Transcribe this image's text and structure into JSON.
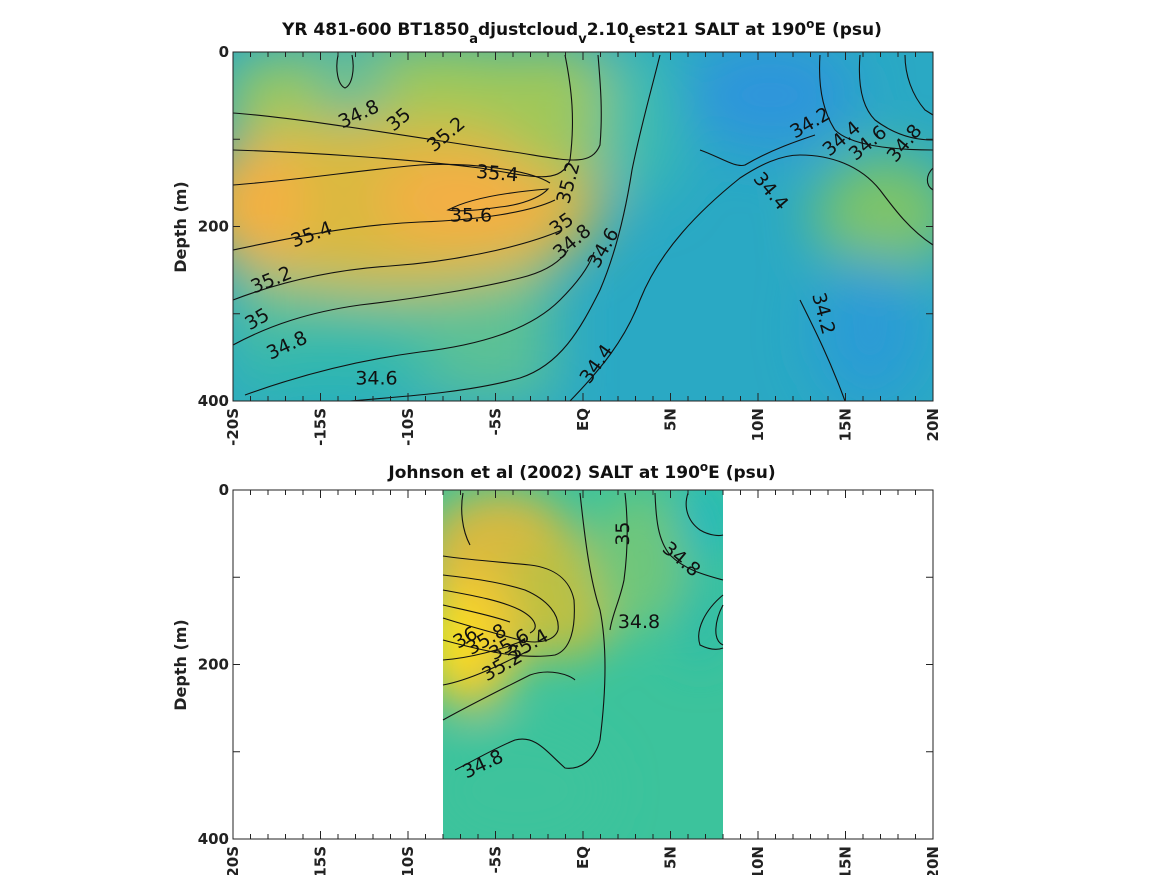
{
  "chart_data": [
    {
      "type": "heatmap",
      "title_main": "YR 481-600 BT1850",
      "title_sub1": "a",
      "title_mid1": "djustcloud",
      "title_sub2": "v",
      "title_mid2": "2.10",
      "title_sub3": "t",
      "title_mid3": "est21 SALT at 190",
      "title_sup": "o",
      "title_end": "E (psu)",
      "ylabel": "Depth (m)",
      "xlim": [
        -20,
        20
      ],
      "ylim": [
        0,
        400
      ],
      "x_ticks": [
        {
          "value": -20,
          "label": "-20S"
        },
        {
          "value": -15,
          "label": "-15S"
        },
        {
          "value": -10,
          "label": "-10S"
        },
        {
          "value": -5,
          "label": "-5S"
        },
        {
          "value": 0,
          "label": "EQ"
        },
        {
          "value": 5,
          "label": "5N"
        },
        {
          "value": 10,
          "label": "10N"
        },
        {
          "value": 15,
          "label": "15N"
        },
        {
          "value": 20,
          "label": "20N"
        }
      ],
      "y_ticks": [
        {
          "value": 0,
          "label": "0"
        },
        {
          "value": 200,
          "label": "200"
        },
        {
          "value": 400,
          "label": "400"
        }
      ],
      "data_extent": [
        -20,
        20
      ],
      "contour_labels": [
        {
          "text": "34.8",
          "x": -12.8,
          "y": 72,
          "angle": -25
        },
        {
          "text": "35",
          "x": -10.5,
          "y": 78,
          "angle": -40
        },
        {
          "text": "35.2",
          "x": -7.8,
          "y": 95,
          "angle": -40
        },
        {
          "text": "35.4",
          "x": -4.9,
          "y": 140,
          "angle": 5
        },
        {
          "text": "35.6",
          "x": -6.4,
          "y": 188,
          "angle": 0
        },
        {
          "text": "35.2",
          "x": -0.8,
          "y": 150,
          "angle": -75
        },
        {
          "text": "35",
          "x": -1.2,
          "y": 198,
          "angle": -35
        },
        {
          "text": "34.8",
          "x": -0.6,
          "y": 218,
          "angle": -40
        },
        {
          "text": "34.6",
          "x": 1.2,
          "y": 225,
          "angle": -60
        },
        {
          "text": "35.4",
          "x": -15.5,
          "y": 210,
          "angle": -20
        },
        {
          "text": "35.2",
          "x": -17.8,
          "y": 262,
          "angle": -22
        },
        {
          "text": "35",
          "x": -18.6,
          "y": 307,
          "angle": -30
        },
        {
          "text": "34.8",
          "x": -16.9,
          "y": 337,
          "angle": -25
        },
        {
          "text": "34.6",
          "x": -11.8,
          "y": 375,
          "angle": 0
        },
        {
          "text": "34.4",
          "x": 0.8,
          "y": 358,
          "angle": -55
        },
        {
          "text": "34.2",
          "x": 13.0,
          "y": 82,
          "angle": -30
        },
        {
          "text": "34.4",
          "x": 14.8,
          "y": 100,
          "angle": -40
        },
        {
          "text": "34.6",
          "x": 16.3,
          "y": 105,
          "angle": -40
        },
        {
          "text": "34.8",
          "x": 18.4,
          "y": 105,
          "angle": -50
        },
        {
          "text": "34.4",
          "x": 10.7,
          "y": 160,
          "angle": 50
        },
        {
          "text": "34.2",
          "x": 13.7,
          "y": 300,
          "angle": 75
        }
      ],
      "color_scale": "parula",
      "value_range_psu": [
        34.0,
        36.2
      ],
      "grid": false
    },
    {
      "type": "heatmap",
      "title_main": "Johnson et al (2002) SALT at 190",
      "title_sup": "o",
      "title_end": "E (psu)",
      "ylabel": "Depth (m)",
      "xlim": [
        -20,
        20
      ],
      "ylim": [
        0,
        400
      ],
      "x_ticks": [
        {
          "value": -20,
          "label": "-20S"
        },
        {
          "value": -15,
          "label": "-15S"
        },
        {
          "value": -10,
          "label": "-10S"
        },
        {
          "value": -5,
          "label": "-5S"
        },
        {
          "value": 0,
          "label": "EQ"
        },
        {
          "value": 5,
          "label": "5N"
        },
        {
          "value": 10,
          "label": "10N"
        },
        {
          "value": 15,
          "label": "15N"
        },
        {
          "value": 20,
          "label": "20N"
        }
      ],
      "y_ticks": [
        {
          "value": 0,
          "label": "0"
        },
        {
          "value": 200,
          "label": "200"
        },
        {
          "value": 400,
          "label": "400"
        }
      ],
      "data_extent": [
        -8,
        8
      ],
      "contour_labels": [
        {
          "text": "35",
          "x": 2.3,
          "y": 50,
          "angle": -90
        },
        {
          "text": "34.8",
          "x": 5.6,
          "y": 80,
          "angle": 40
        },
        {
          "text": "34.8",
          "x": 3.2,
          "y": 152,
          "angle": 0
        },
        {
          "text": "36",
          "x": -6.7,
          "y": 170,
          "angle": -30
        },
        {
          "text": "35.8",
          "x": -5.5,
          "y": 172,
          "angle": -30
        },
        {
          "text": "35.6",
          "x": -4.2,
          "y": 178,
          "angle": -30
        },
        {
          "text": "35.4",
          "x": -3.1,
          "y": 178,
          "angle": -30
        },
        {
          "text": "35.2",
          "x": -4.6,
          "y": 202,
          "angle": -30
        },
        {
          "text": "34.8",
          "x": -5.7,
          "y": 315,
          "angle": -25
        }
      ],
      "color_scale": "parula",
      "value_range_psu": [
        34.0,
        36.2
      ],
      "grid": false
    }
  ]
}
